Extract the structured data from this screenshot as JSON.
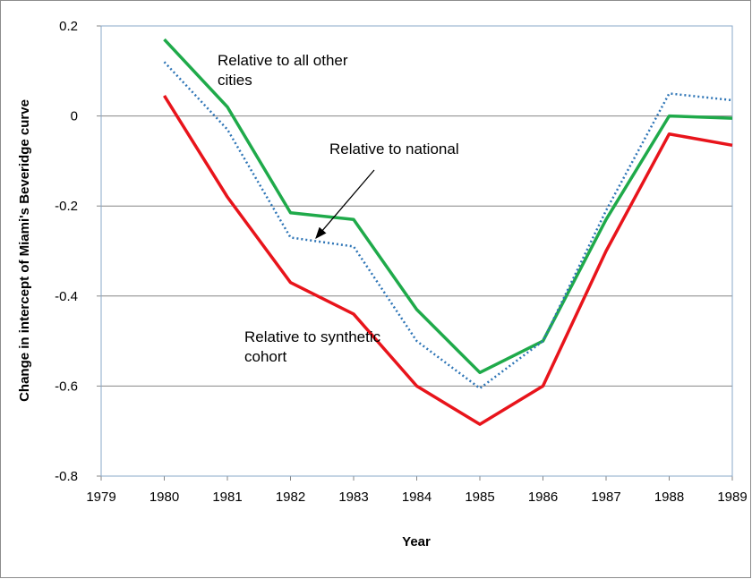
{
  "chart_data": {
    "type": "line",
    "y_label": "Change in intercept of Miami's Beveridge curve",
    "x_label": "Year",
    "x": [
      1980,
      1981,
      1982,
      1983,
      1984,
      1985,
      1986,
      1987,
      1988,
      1989
    ],
    "series": [
      {
        "name": "Relative to all other cities",
        "color": "#1faa4a",
        "line_style": "solid",
        "values": [
          0.17,
          0.02,
          -0.215,
          -0.23,
          -0.43,
          -0.57,
          -0.5,
          -0.23,
          0.0,
          -0.005
        ]
      },
      {
        "name": "Relative to national",
        "color": "#2e75b6",
        "line_style": "dotted",
        "values": [
          0.12,
          -0.03,
          -0.27,
          -0.29,
          -0.5,
          -0.605,
          -0.5,
          -0.21,
          0.05,
          0.035
        ]
      },
      {
        "name": "Relative to synthetic cohort",
        "color": "#e8141b",
        "line_style": "solid",
        "values": [
          0.045,
          -0.18,
          -0.37,
          -0.44,
          -0.6,
          -0.685,
          -0.6,
          -0.3,
          -0.04,
          -0.065
        ]
      }
    ],
    "xlim": [
      1979,
      1989
    ],
    "xticks": [
      1979,
      1980,
      1981,
      1982,
      1983,
      1984,
      1985,
      1986,
      1987,
      1988,
      1989
    ],
    "ylim": [
      -0.8,
      0.2
    ],
    "yticks": [
      0.2,
      0,
      -0.2,
      -0.4,
      -0.6,
      -0.8
    ],
    "grid": true
  }
}
